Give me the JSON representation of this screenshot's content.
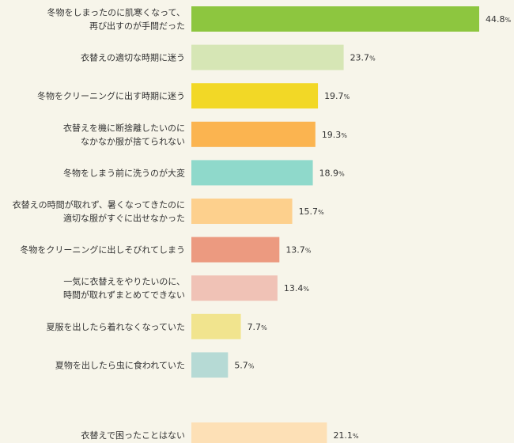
{
  "chart_data": {
    "type": "bar",
    "orientation": "horizontal",
    "unit": "%",
    "grid": false,
    "categories": [
      [
        "冬物をしまったのに肌寒くなって、",
        "再び出すのが手間だった"
      ],
      [
        "衣替えの適切な時期に迷う"
      ],
      [
        "冬物をクリーニングに出す時期に迷う"
      ],
      [
        "衣替えを機に断捨離したいのに",
        "なかなか服が捨てられない"
      ],
      [
        "冬物をしまう前に洗うのが大変"
      ],
      [
        "衣替えの時間が取れず、暑くなってきたのに",
        "適切な服がすぐに出せなかった"
      ],
      [
        "冬物をクリーニングに出しそびれてしまう"
      ],
      [
        "一気に衣替えをやりたいのに、",
        "時間が取れずまとめてできない"
      ],
      [
        "夏服を出したら着れなくなっていた"
      ],
      [
        "夏物を出したら虫に食われていた"
      ],
      [
        "衣替えで困ったことはない"
      ]
    ],
    "values": [
      44.8,
      23.7,
      19.7,
      19.3,
      18.9,
      15.7,
      13.7,
      13.4,
      7.7,
      5.7,
      21.1
    ],
    "value_labels": [
      "44.8",
      "23.7",
      "19.7",
      "19.3",
      "18.9",
      "15.7",
      "13.7",
      "13.4",
      "7.7",
      "5.7",
      "21.1"
    ],
    "value_suffix": "%",
    "colors": [
      "#8dc63f",
      "#d6e6b5",
      "#f2d826",
      "#fbb450",
      "#8fd9cb",
      "#fdd08d",
      "#ec9a80",
      "#f0c2b6",
      "#f1e48e",
      "#b6dad5",
      "#fde0b6"
    ],
    "xlim": [
      0,
      48
    ],
    "gap_before_last": true
  }
}
